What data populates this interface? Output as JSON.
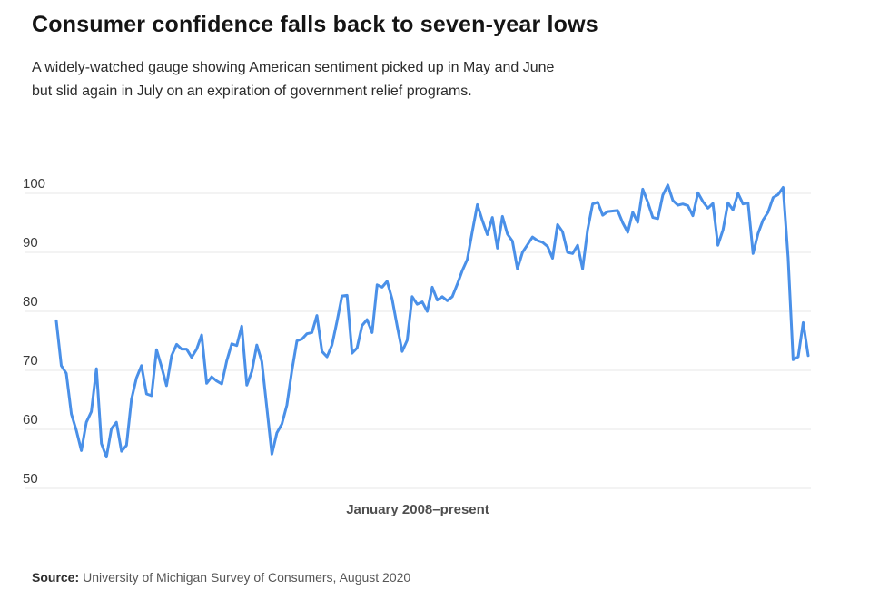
{
  "header": {
    "title": "Consumer confidence falls back to seven-year lows",
    "subtitle_line1": "A widely-watched gauge showing American sentiment picked up in May and June",
    "subtitle_line2": "but slid again in July on an expiration of government relief programs."
  },
  "chart_data": {
    "type": "line",
    "title": "Consumer confidence falls back to seven-year lows",
    "xlabel": "January 2008–present",
    "ylabel": "",
    "x_start": "2008-01",
    "x_end": "2020-07",
    "x_frequency": "monthly",
    "yticks": [
      50,
      60,
      70,
      80,
      90,
      100
    ],
    "ylim": [
      50,
      102
    ],
    "grid": "horizontal",
    "legend": "none",
    "line_color": "#4a90e8",
    "series": [
      {
        "name": "consumer_sentiment_index",
        "values": [
          78.4,
          70.8,
          69.5,
          62.6,
          59.8,
          56.4,
          61.2,
          63.0,
          70.3,
          57.6,
          55.3,
          60.1,
          61.2,
          56.3,
          57.3,
          65.1,
          68.7,
          70.8,
          66.0,
          65.7,
          73.5,
          70.6,
          67.4,
          72.5,
          74.4,
          73.6,
          73.6,
          72.2,
          73.6,
          76.0,
          67.8,
          68.9,
          68.2,
          67.7,
          71.6,
          74.5,
          74.2,
          77.5,
          67.5,
          69.8,
          74.3,
          71.5,
          63.7,
          55.8,
          59.4,
          60.9,
          64.1,
          69.9,
          75.0,
          75.3,
          76.2,
          76.4,
          79.3,
          73.2,
          72.3,
          74.3,
          78.3,
          82.6,
          82.7,
          72.9,
          73.8,
          77.6,
          78.6,
          76.4,
          84.5,
          84.1,
          85.1,
          82.1,
          77.5,
          73.2,
          75.1,
          82.5,
          81.2,
          81.6,
          80.0,
          84.1,
          81.9,
          82.5,
          81.8,
          82.5,
          84.6,
          86.9,
          88.8,
          93.6,
          98.1,
          95.4,
          93.0,
          95.9,
          90.7,
          96.1,
          93.1,
          91.9,
          87.2,
          90.0,
          91.3,
          92.6,
          92.0,
          91.7,
          91.0,
          89.0,
          94.7,
          93.5,
          90.0,
          89.8,
          91.2,
          87.2,
          93.8,
          98.2,
          98.5,
          96.3,
          96.9,
          97.0,
          97.1,
          95.0,
          93.4,
          96.8,
          95.1,
          100.7,
          98.5,
          95.9,
          95.7,
          99.7,
          101.4,
          98.8,
          98.0,
          98.2,
          97.9,
          96.2,
          100.1,
          98.6,
          97.5,
          98.3,
          91.2,
          93.8,
          98.4,
          97.2,
          100.0,
          98.2,
          98.4,
          89.8,
          93.2,
          95.5,
          96.8,
          99.3,
          99.8,
          101.0,
          89.1,
          71.8,
          72.3,
          78.1,
          72.5
        ]
      }
    ]
  },
  "footer": {
    "source_label": "Source:",
    "source_text": "University of Michigan Survey of Consumers, August 2020"
  }
}
